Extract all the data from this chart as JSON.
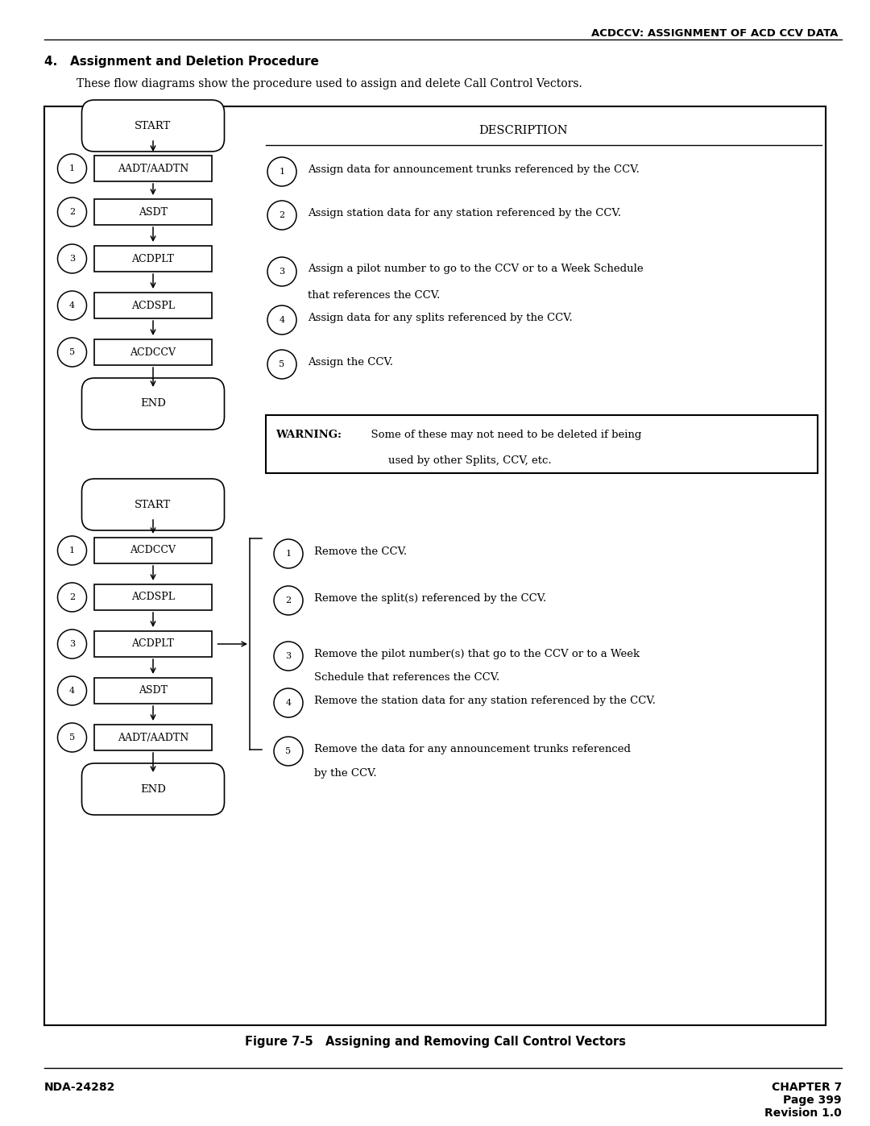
{
  "header_right": "ACDCCV: ASSIGNMENT OF ACD CCV DATA",
  "section_title": "4.   Assignment and Deletion Procedure",
  "section_desc": "These flow diagrams show the procedure used to assign and delete Call Control Vectors.",
  "figure_caption": "Figure 7-5   Assigning and Removing Call Control Vectors",
  "footer_left": "NDA-24282",
  "footer_right": "CHAPTER 7\nPage 399\nRevision 1.0",
  "description_header": "DESCRIPTION",
  "assign_steps": [
    {
      "num": "1",
      "box": "AADT/AADTN",
      "desc": "Assign data for announcement trunks referenced by the CCV."
    },
    {
      "num": "2",
      "box": "ASDT",
      "desc": "Assign station data for any station referenced by the CCV."
    },
    {
      "num": "3",
      "box": "ACDPLT",
      "desc": "Assign a pilot number to go to the CCV or to a Week Schedule\nthat references the CCV."
    },
    {
      "num": "4",
      "box": "ACDSPL",
      "desc": "Assign data for any splits referenced by the CCV."
    },
    {
      "num": "5",
      "box": "ACDCCV",
      "desc": "Assign the CCV."
    }
  ],
  "remove_steps": [
    {
      "num": "1",
      "box": "ACDCCV",
      "desc": "Remove the CCV."
    },
    {
      "num": "2",
      "box": "ACDSPL",
      "desc": "Remove the split(s) referenced by the CCV."
    },
    {
      "num": "3",
      "box": "ACDPLT",
      "desc": "Remove the pilot number(s) that go to the CCV or to a Week\nSchedule that references the CCV."
    },
    {
      "num": "4",
      "box": "ASDT",
      "desc": "Remove the station data for any station referenced by the CCV."
    },
    {
      "num": "5",
      "box": "AADT/AADTN",
      "desc": "Remove the data for any announcement trunks referenced\nby the CCV."
    }
  ],
  "bg_color": "#ffffff",
  "box_color": "#000000",
  "text_color": "#000000"
}
